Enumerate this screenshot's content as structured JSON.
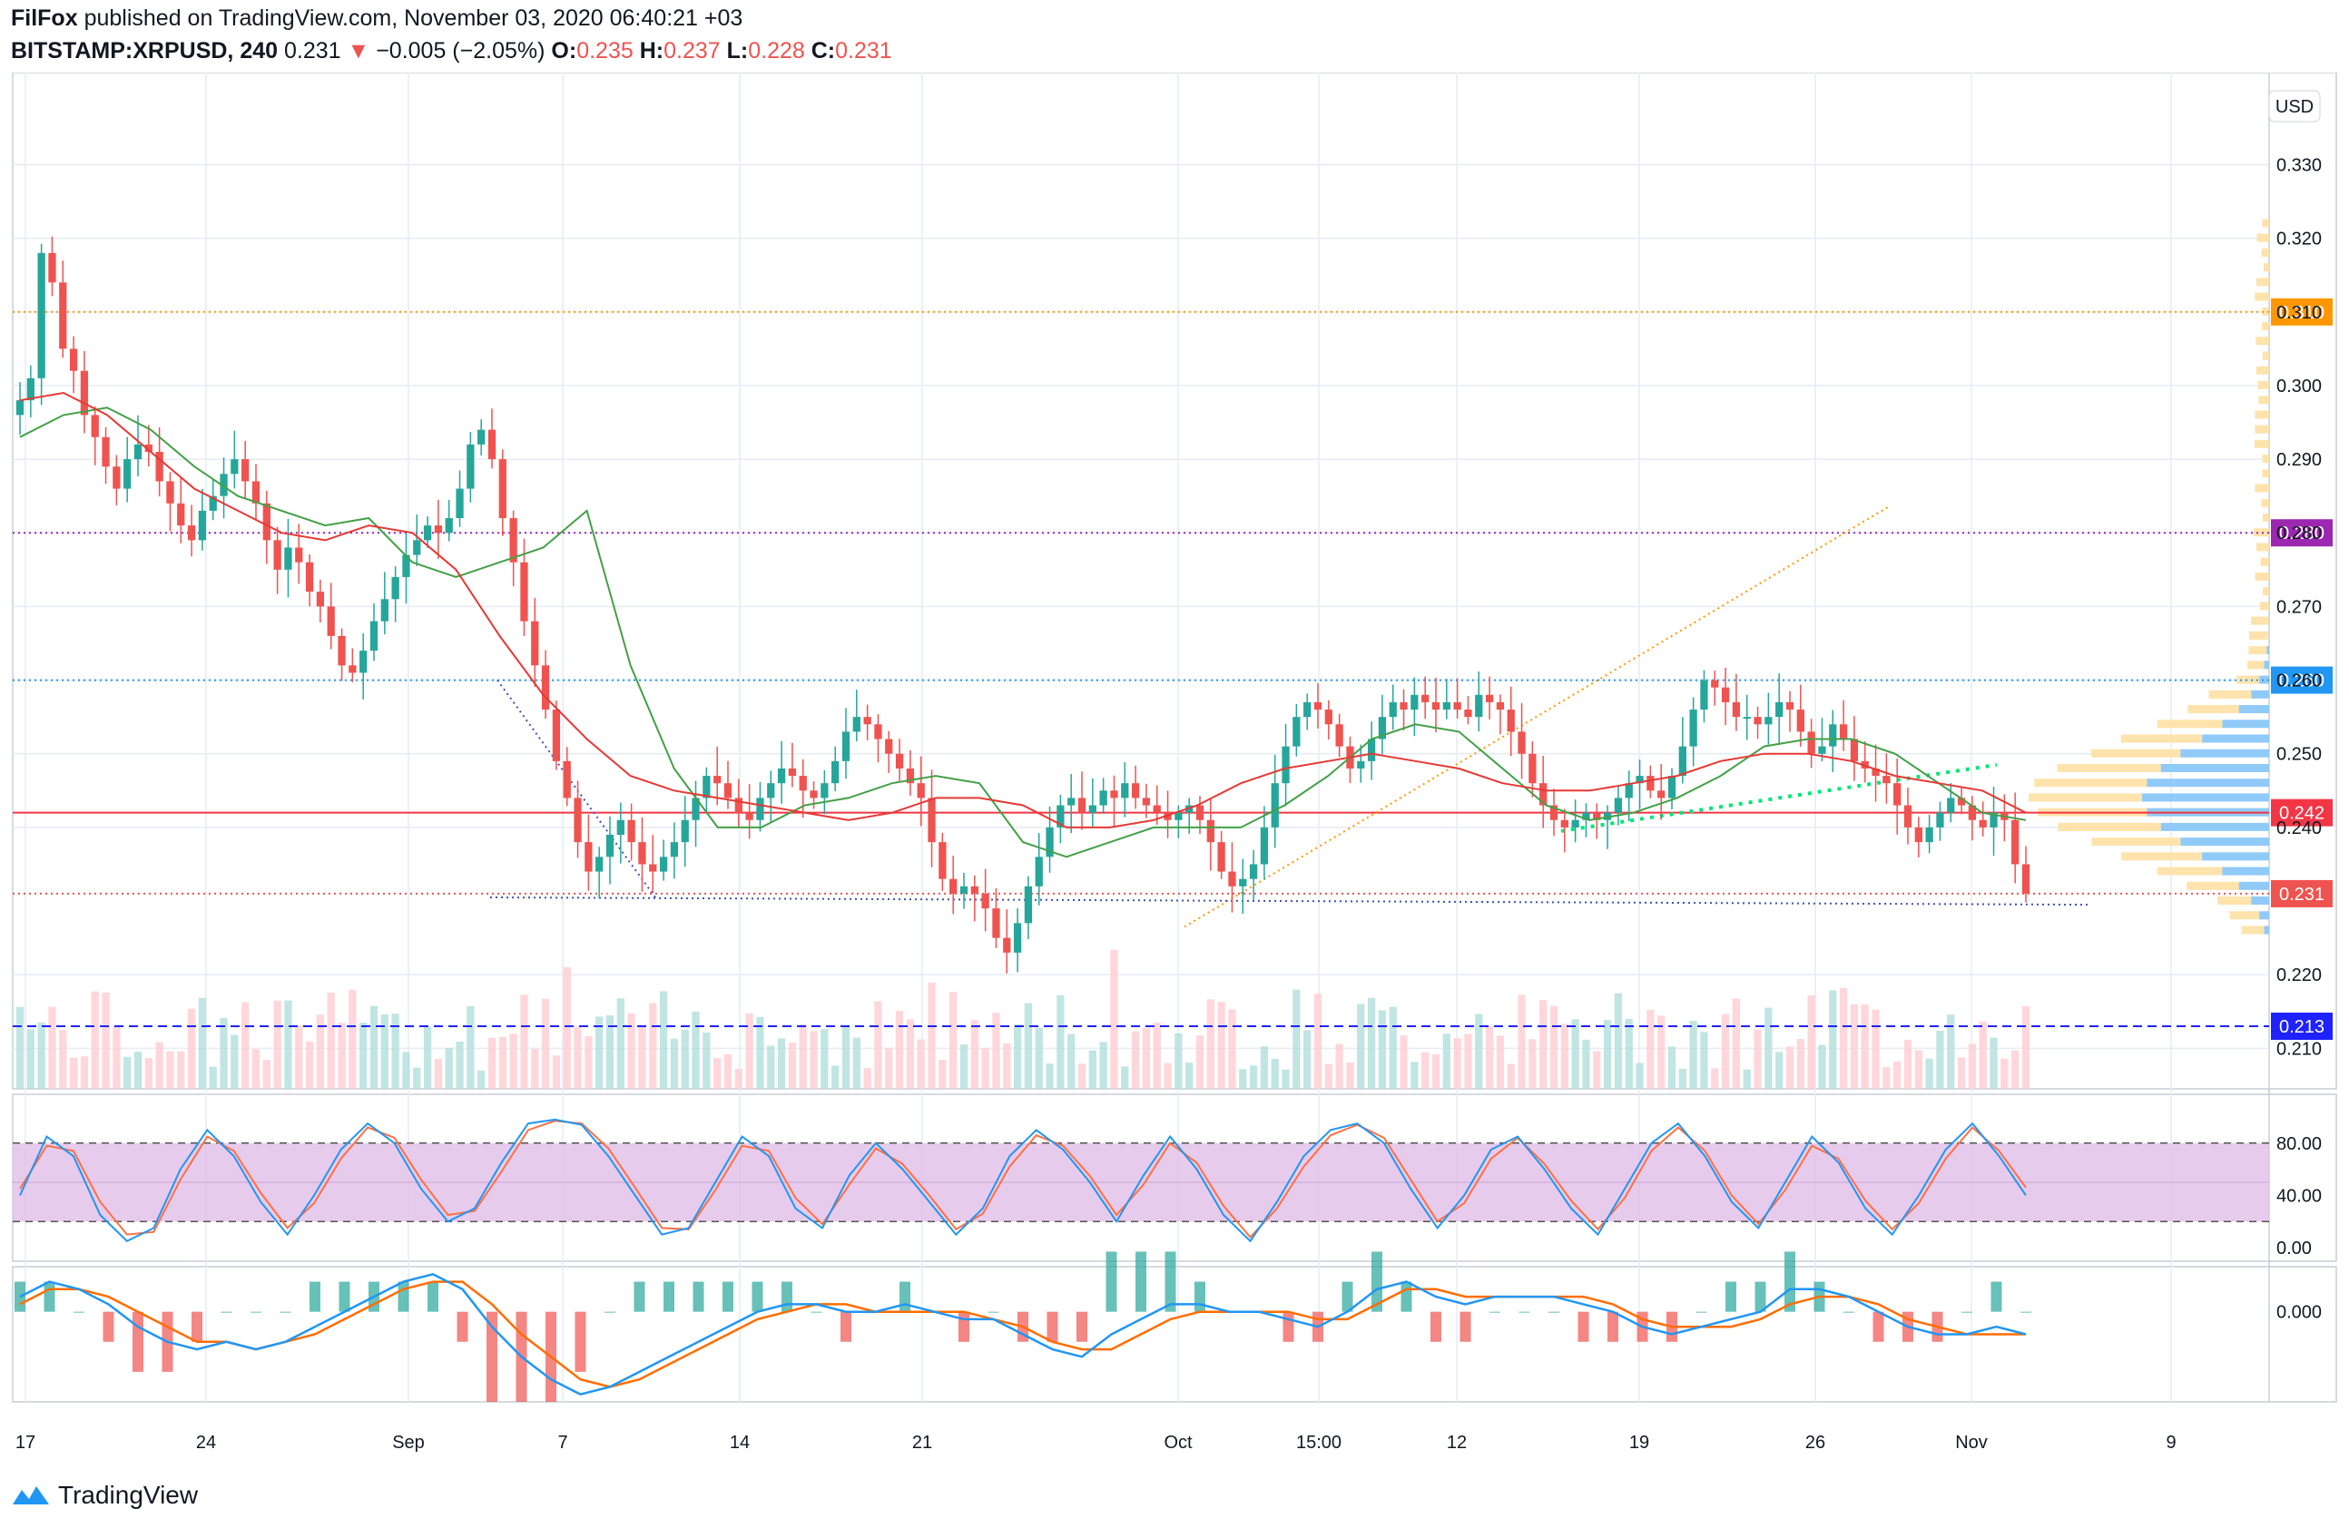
{
  "header": {
    "publisher": "FilFox",
    "published_text": "published on TradingView.com, November 03, 2020 06:40:21 +03",
    "symbol": "BITSTAMP:XRPUSD, 240",
    "last": "0.231",
    "arrow": "▼",
    "change": "−0.005 (−2.05%)",
    "o_label": "O:",
    "o": "0.235",
    "h_label": "H:",
    "h": "0.237",
    "l_label": "L:",
    "l": "0.228",
    "c_label": "C:",
    "c": "0.231"
  },
  "currency_button": "USD",
  "footer": {
    "logo_text": "TradingView"
  },
  "colors": {
    "up": "#26a69a",
    "down": "#ef5350",
    "ma_fast": "#43a047",
    "ma_slow": "#e53935",
    "stoch_k": "#2196f3",
    "stoch_d": "#ff7043",
    "stoch_band": "#e1bee7",
    "macd": "#2196f3",
    "signal": "#ff6d00",
    "grid": "#e6ecf5"
  },
  "chart_data": [
    {
      "name": "price",
      "type": "candlestick",
      "y_axis_ticks": [
        "0.330",
        "0.320",
        "0.310",
        "0.300",
        "0.290",
        "0.280",
        "0.270",
        "0.260",
        "0.250",
        "0.240",
        "0.220",
        "0.210"
      ],
      "y_range": [
        0.2045,
        0.3425
      ],
      "x_axis_ticks": [
        "17",
        "24",
        "Sep",
        "7",
        "14",
        "21",
        "Oct",
        "15:00",
        "12",
        "19",
        "26",
        "Nov",
        "9"
      ],
      "horizontal_levels": [
        {
          "value": 0.31,
          "label": "0.310",
          "color": "#ff9800",
          "style": "dotted"
        },
        {
          "value": 0.28,
          "label": "0.280",
          "color": "#9c27b0",
          "style": "dotted"
        },
        {
          "value": 0.26,
          "label": "0.260",
          "color": "#2196f3",
          "style": "dotted"
        },
        {
          "value": 0.242,
          "label": "0.242",
          "color": "#f23645",
          "style": "solid"
        },
        {
          "value": 0.231,
          "label": "0.231",
          "color": "#ef5350",
          "style": "dotted"
        },
        {
          "value": 0.213,
          "label": "0.213",
          "color": "#1e22ff",
          "style": "dashed"
        }
      ],
      "closes": [
        0.298,
        0.301,
        0.318,
        0.314,
        0.305,
        0.302,
        0.296,
        0.293,
        0.289,
        0.286,
        0.29,
        0.292,
        0.291,
        0.287,
        0.284,
        0.281,
        0.279,
        0.283,
        0.285,
        0.288,
        0.29,
        0.287,
        0.284,
        0.279,
        0.275,
        0.278,
        0.276,
        0.272,
        0.27,
        0.266,
        0.262,
        0.261,
        0.264,
        0.268,
        0.271,
        0.274,
        0.277,
        0.279,
        0.281,
        0.28,
        0.282,
        0.286,
        0.292,
        0.294,
        0.29,
        0.282,
        0.276,
        0.268,
        0.262,
        0.256,
        0.249,
        0.244,
        0.238,
        0.234,
        0.236,
        0.239,
        0.241,
        0.238,
        0.235,
        0.234,
        0.236,
        0.238,
        0.241,
        0.244,
        0.247,
        0.246,
        0.244,
        0.242,
        0.241,
        0.244,
        0.246,
        0.248,
        0.247,
        0.245,
        0.244,
        0.246,
        0.249,
        0.253,
        0.255,
        0.254,
        0.252,
        0.25,
        0.248,
        0.246,
        0.244,
        0.238,
        0.233,
        0.231,
        0.232,
        0.231,
        0.229,
        0.225,
        0.223,
        0.227,
        0.232,
        0.236,
        0.24,
        0.243,
        0.244,
        0.242,
        0.243,
        0.245,
        0.244,
        0.246,
        0.244,
        0.243,
        0.242,
        0.241,
        0.242,
        0.243,
        0.241,
        0.238,
        0.234,
        0.232,
        0.233,
        0.235,
        0.24,
        0.246,
        0.251,
        0.255,
        0.257,
        0.256,
        0.254,
        0.251,
        0.248,
        0.249,
        0.252,
        0.255,
        0.257,
        0.256,
        0.258,
        0.257,
        0.256,
        0.257,
        0.256,
        0.255,
        0.258,
        0.257,
        0.256,
        0.253,
        0.25,
        0.246,
        0.243,
        0.241,
        0.24,
        0.241,
        0.242,
        0.241,
        0.242,
        0.244,
        0.246,
        0.247,
        0.245,
        0.244,
        0.247,
        0.251,
        0.256,
        0.26,
        0.259,
        0.257,
        0.255,
        0.255,
        0.254,
        0.255,
        0.257,
        0.256,
        0.253,
        0.25,
        0.251,
        0.254,
        0.252,
        0.249,
        0.248,
        0.247,
        0.246,
        0.243,
        0.24,
        0.238,
        0.24,
        0.242,
        0.244,
        0.243,
        0.241,
        0.24,
        0.242,
        0.241,
        0.235,
        0.231
      ],
      "moving_average_fast": [
        0.293,
        0.296,
        0.297,
        0.294,
        0.289,
        0.285,
        0.283,
        0.281,
        0.282,
        0.276,
        0.274,
        0.276,
        0.278,
        0.283,
        0.262,
        0.248,
        0.24,
        0.24,
        0.243,
        0.244,
        0.246,
        0.247,
        0.246,
        0.238,
        0.236,
        0.238,
        0.24,
        0.24,
        0.24,
        0.243,
        0.247,
        0.252,
        0.254,
        0.253,
        0.248,
        0.243,
        0.241,
        0.242,
        0.244,
        0.247,
        0.251,
        0.252,
        0.252,
        0.25,
        0.246,
        0.242,
        0.241
      ],
      "moving_average_slow": [
        0.298,
        0.299,
        0.296,
        0.291,
        0.286,
        0.283,
        0.28,
        0.279,
        0.281,
        0.28,
        0.275,
        0.266,
        0.258,
        0.252,
        0.247,
        0.245,
        0.244,
        0.243,
        0.242,
        0.241,
        0.242,
        0.244,
        0.244,
        0.243,
        0.24,
        0.24,
        0.241,
        0.243,
        0.246,
        0.248,
        0.249,
        0.25,
        0.249,
        0.248,
        0.246,
        0.245,
        0.245,
        0.246,
        0.247,
        0.249,
        0.25,
        0.25,
        0.249,
        0.247,
        0.246,
        0.245,
        0.242
      ]
    },
    {
      "name": "stochastic_rsi",
      "type": "line",
      "y_axis_ticks": [
        "80.00",
        "40.00",
        "0.00"
      ],
      "y_range": [
        0,
        100
      ],
      "band": [
        20,
        80
      ],
      "k": [
        40,
        85,
        70,
        25,
        5,
        15,
        60,
        90,
        70,
        35,
        10,
        40,
        75,
        95,
        80,
        45,
        20,
        30,
        65,
        95,
        98,
        94,
        70,
        40,
        10,
        15,
        50,
        85,
        70,
        30,
        15,
        55,
        80,
        60,
        35,
        10,
        30,
        70,
        90,
        75,
        50,
        20,
        55,
        85,
        60,
        25,
        5,
        35,
        70,
        90,
        95,
        80,
        45,
        15,
        40,
        75,
        85,
        60,
        30,
        10,
        45,
        80,
        95,
        70,
        35,
        15,
        50,
        85,
        65,
        30,
        10,
        40,
        75,
        95,
        70,
        40
      ],
      "d": [
        45,
        78,
        74,
        35,
        10,
        12,
        52,
        85,
        74,
        42,
        15,
        34,
        68,
        92,
        84,
        52,
        25,
        28,
        58,
        90,
        97,
        95,
        76,
        46,
        15,
        14,
        44,
        78,
        74,
        38,
        18,
        48,
        76,
        64,
        40,
        14,
        26,
        62,
        86,
        78,
        55,
        25,
        48,
        80,
        65,
        32,
        8,
        30,
        62,
        86,
        94,
        84,
        52,
        20,
        34,
        68,
        84,
        64,
        36,
        14,
        38,
        74,
        92,
        74,
        40,
        18,
        44,
        78,
        68,
        36,
        14,
        34,
        68,
        92,
        74,
        46
      ]
    },
    {
      "name": "macd",
      "type": "line",
      "y_axis_ticks": [
        "0.000"
      ],
      "y_range": [
        -0.012,
        0.006
      ],
      "macd": [
        0.002,
        0.004,
        0.003,
        0.001,
        -0.002,
        -0.004,
        -0.005,
        -0.004,
        -0.005,
        -0.004,
        -0.002,
        0.0,
        0.002,
        0.004,
        0.005,
        0.003,
        -0.002,
        -0.006,
        -0.009,
        -0.011,
        -0.01,
        -0.008,
        -0.006,
        -0.004,
        -0.002,
        0.0,
        0.001,
        0.001,
        0.0,
        0.0,
        0.001,
        0.0,
        -0.001,
        -0.001,
        -0.003,
        -0.005,
        -0.006,
        -0.003,
        -0.001,
        0.001,
        0.001,
        0.0,
        0.0,
        -0.001,
        -0.002,
        0.0,
        0.003,
        0.004,
        0.002,
        0.001,
        0.002,
        0.002,
        0.002,
        0.001,
        0.0,
        -0.002,
        -0.003,
        -0.002,
        -0.001,
        0.0,
        0.003,
        0.003,
        0.002,
        0.0,
        -0.002,
        -0.003,
        -0.003,
        -0.002,
        -0.003
      ],
      "signal": [
        0.001,
        0.003,
        0.003,
        0.002,
        0.0,
        -0.002,
        -0.004,
        -0.004,
        -0.005,
        -0.004,
        -0.003,
        -0.001,
        0.001,
        0.003,
        0.004,
        0.004,
        0.001,
        -0.003,
        -0.006,
        -0.009,
        -0.01,
        -0.009,
        -0.007,
        -0.005,
        -0.003,
        -0.001,
        0.0,
        0.001,
        0.001,
        0.0,
        0.0,
        0.0,
        0.0,
        -0.001,
        -0.002,
        -0.004,
        -0.005,
        -0.005,
        -0.003,
        -0.001,
        0.0,
        0.0,
        0.0,
        0.0,
        -0.001,
        -0.001,
        0.001,
        0.003,
        0.003,
        0.002,
        0.002,
        0.002,
        0.002,
        0.002,
        0.001,
        -0.001,
        -0.002,
        -0.002,
        -0.002,
        -0.001,
        0.001,
        0.002,
        0.002,
        0.001,
        -0.001,
        -0.002,
        -0.003,
        -0.003,
        -0.003
      ]
    }
  ]
}
